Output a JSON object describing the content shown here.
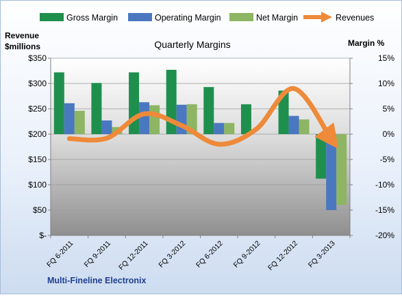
{
  "chart_data": {
    "type": "bar",
    "title": "Quarterly Margins",
    "company_label": "Multi-Fineline Electronix",
    "left_axis_title_line1": "Revenue",
    "left_axis_title_line2": "$millions",
    "right_axis_title": "Margin %",
    "categories": [
      "FQ 6-2011",
      "FQ 9-2011",
      "FQ 12-2011",
      "FQ 3-2012",
      "FQ 6-2012",
      "FQ 9-2012",
      "FQ 12-2012",
      "FQ 3-2013"
    ],
    "left_ticks": [
      "$-",
      "$50",
      "$100",
      "$150",
      "$200",
      "$250",
      "$300",
      "$350"
    ],
    "right_ticks": [
      "-20%",
      "-15%",
      "-10%",
      "-5%",
      "0%",
      "5%",
      "10%",
      "15%"
    ],
    "ylim_left": [
      0,
      350
    ],
    "ylim_right": [
      -20,
      15
    ],
    "legend_position": "top",
    "series": [
      {
        "name": "Gross Margin",
        "axis": "right",
        "kind": "bar",
        "color": "#1f8f4e",
        "values": [
          12.2,
          10.1,
          12.2,
          12.7,
          9.3,
          5.9,
          8.6,
          -8.8
        ]
      },
      {
        "name": "Operating Margin",
        "axis": "right",
        "kind": "bar",
        "color": "#4a78c0",
        "values": [
          6.1,
          2.7,
          6.3,
          5.8,
          2.2,
          0.0,
          3.6,
          -15.0
        ]
      },
      {
        "name": "Net Margin",
        "axis": "right",
        "kind": "bar",
        "color": "#8db563",
        "values": [
          4.6,
          1.4,
          5.7,
          5.9,
          2.2,
          0.0,
          2.9,
          -14.0
        ]
      },
      {
        "name": "Revenues",
        "axis": "left",
        "kind": "arrow-line",
        "color": "#ee8a3a",
        "values": [
          191,
          192,
          240,
          217,
          180,
          210,
          290,
          190
        ]
      }
    ]
  }
}
